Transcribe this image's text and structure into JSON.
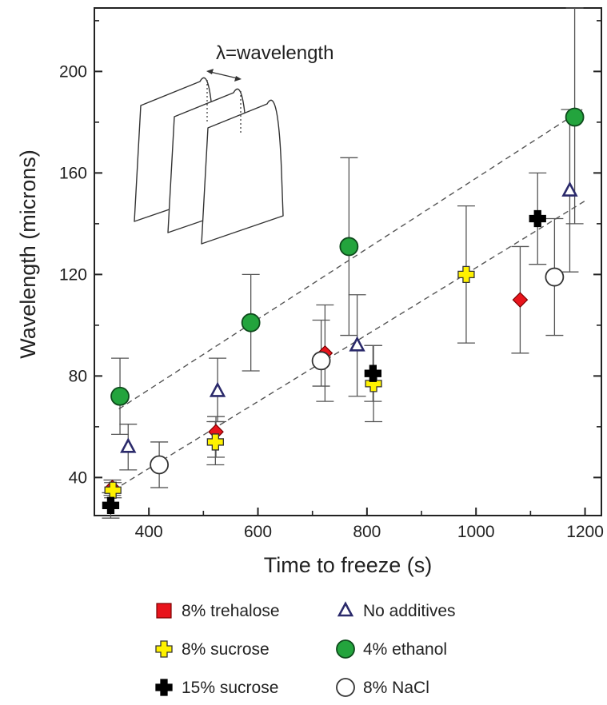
{
  "chart_data": {
    "type": "scatter",
    "xlabel": "Time to freeze (s)",
    "ylabel": "Wavelength (microns)",
    "xlim": [
      300,
      1230
    ],
    "ylim": [
      25,
      225
    ],
    "x_ticks": [
      400,
      600,
      800,
      1000,
      1200
    ],
    "y_ticks": [
      40,
      80,
      120,
      160,
      200
    ],
    "grid": false,
    "legend_position": "bottom",
    "inset_label": "λ=wavelength",
    "series": [
      {
        "name": "8% trehalose",
        "marker": "diamond",
        "fill": "#e8141c",
        "stroke": "#7a0000",
        "points": [
          {
            "x": 333,
            "y": 36,
            "err_low": 33,
            "err_high": 39
          },
          {
            "x": 523,
            "y": 58,
            "err_low": 48,
            "err_high": 64
          },
          {
            "x": 723,
            "y": 89,
            "err_low": 70,
            "err_high": 108
          },
          {
            "x": 1081,
            "y": 110,
            "err_low": 89,
            "err_high": 131
          }
        ]
      },
      {
        "name": "No additives",
        "marker": "triangle",
        "fill": "#ffffff",
        "stroke": "#2b2a6b",
        "points": [
          {
            "x": 362,
            "y": 52,
            "err_low": 43,
            "err_high": 61
          },
          {
            "x": 526,
            "y": 74,
            "err_low": 62,
            "err_high": 87
          },
          {
            "x": 782,
            "y": 92,
            "err_low": 72,
            "err_high": 112
          },
          {
            "x": 1172,
            "y": 153,
            "err_low": 121,
            "err_high": 185
          }
        ]
      },
      {
        "name": "8% sucrose",
        "marker": "plus",
        "fill": "#fff200",
        "stroke": "#333333",
        "points": [
          {
            "x": 334,
            "y": 35,
            "err_low": 32,
            "err_high": 38
          },
          {
            "x": 522,
            "y": 54,
            "err_low": 45,
            "err_high": 62
          },
          {
            "x": 812,
            "y": 77,
            "err_low": 62,
            "err_high": 92
          },
          {
            "x": 982,
            "y": 120,
            "err_low": 93,
            "err_high": 147
          }
        ]
      },
      {
        "name": "4% ethanol",
        "marker": "circle",
        "fill": "#23a43d",
        "stroke": "#0e4a1c",
        "points": [
          {
            "x": 347,
            "y": 72,
            "err_low": 57,
            "err_high": 87
          },
          {
            "x": 587,
            "y": 101,
            "err_low": 82,
            "err_high": 120
          },
          {
            "x": 767,
            "y": 131,
            "err_low": 96,
            "err_high": 166
          },
          {
            "x": 1181,
            "y": 182,
            "err_low": 140,
            "err_high": 225
          }
        ]
      },
      {
        "name": "15% sucrose",
        "marker": "plus",
        "fill": "#000000",
        "stroke": "#000000",
        "points": [
          {
            "x": 330,
            "y": 29,
            "err_low": 24,
            "err_high": 34
          },
          {
            "x": 811,
            "y": 81,
            "err_low": 70,
            "err_high": 92
          },
          {
            "x": 1113,
            "y": 142,
            "err_low": 124,
            "err_high": 160
          }
        ]
      },
      {
        "name": "8% NaCl",
        "marker": "circle",
        "fill": "#ffffff",
        "stroke": "#333333",
        "points": [
          {
            "x": 419,
            "y": 45,
            "err_low": 36,
            "err_high": 54
          },
          {
            "x": 716,
            "y": 86,
            "err_low": 76,
            "err_high": 102
          },
          {
            "x": 1144,
            "y": 119,
            "err_low": 96,
            "err_high": 142
          }
        ]
      }
    ],
    "trend_lines": [
      {
        "x": [
          345,
          1195
        ],
        "y": [
          67,
          185
        ]
      },
      {
        "x": [
          335,
          1200
        ],
        "y": [
          35,
          149
        ]
      }
    ],
    "legend_order": [
      "8% trehalose",
      "No additives",
      "8% sucrose",
      "4% ethanol",
      "15% sucrose",
      "8% NaCl"
    ]
  }
}
